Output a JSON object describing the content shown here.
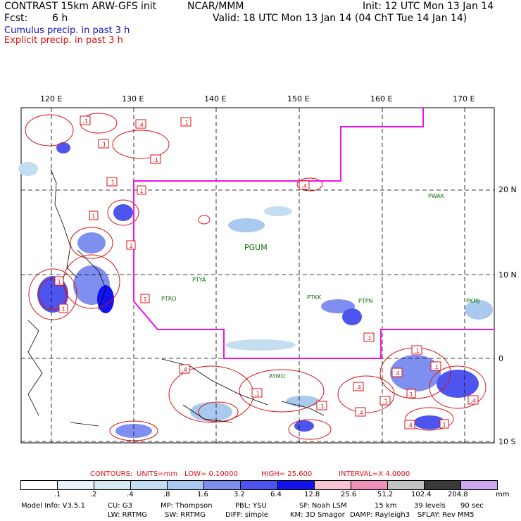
{
  "header": {
    "model": "CONTRAST 15km ARW-GFS init",
    "org": "NCAR/MMM",
    "fcst_label": "Fcst:",
    "fcst_value": "6 h",
    "init": "Init: 12 UTC Mon 13 Jan 14",
    "valid": "Valid: 18 UTC Mon 13 Jan 14 (04 ChT Tue 14 Jan 14)"
  },
  "legend": {
    "cumulus": "Cumulus precip. in past 3 h",
    "explicit": "Explicit precip. in past 3 h"
  },
  "axes": {
    "lon_labels": [
      "120 E",
      "130 E",
      "140 E",
      "150 E",
      "160 E",
      "170 E"
    ],
    "lat_labels": [
      "20 N",
      "10 N",
      "0",
      "10 S"
    ]
  },
  "stations": [
    "PGUM",
    "PTYA",
    "PTRO",
    "PTKK",
    "PTPN",
    "PKMJ",
    "PWAK",
    "AYMO"
  ],
  "contour_labels": [
    "1",
    "1",
    ".4",
    "1",
    "1",
    ".1",
    ".1",
    ".1",
    "1",
    ".1",
    ".1",
    ".4",
    "1",
    ".1",
    ".1",
    ".4",
    ".1",
    ".4",
    "1",
    ".4",
    "1",
    ".4",
    ".1",
    ".4",
    ".1",
    ".4",
    ".1"
  ],
  "contours": {
    "title": "CONTOURS:",
    "units": "UNITS=mm",
    "low": "LOW= 0.10000",
    "high": "HIGH= 25.600",
    "interval": "INTERVAL=X 4.0000"
  },
  "colorbar": {
    "unit": "mm",
    "ticks": [
      ".1",
      ".2",
      ".4",
      ".8",
      "1.6",
      "3.2",
      "6.4",
      "12.8",
      "25.6",
      "51.2",
      "102.4",
      "204.8"
    ],
    "colors": [
      "#ffffff",
      "#eaf2f8",
      "#d6e8f2",
      "#c2def0",
      "#a9c9ee",
      "#7f8ff0",
      "#4d55ee",
      "#1313ee",
      "#f6c4d2",
      "#ee90b8",
      "#c2c2c2",
      "#3a3a3a",
      "#cfa6f2"
    ]
  },
  "footer": {
    "line1": [
      "Model Info: V3.5.1",
      "CU: G3",
      "MP: Thompson",
      "PBL: YSU",
      "SF: Noah LSM",
      "15 km",
      "39 levels",
      "90 sec"
    ],
    "line2": [
      "LW: RRTMG",
      "SW: RRTMG",
      "DIFF: simple",
      "KM: 3D Smagor",
      "DAMP: Rayleigh3",
      "SFLAY: Rev MM5"
    ]
  }
}
